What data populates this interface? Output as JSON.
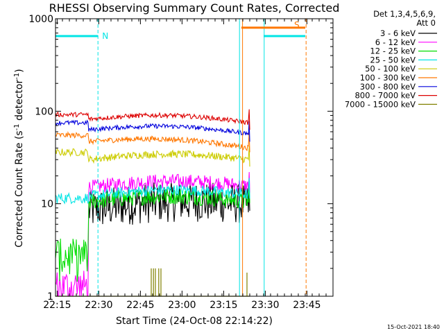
{
  "chart_data": {
    "type": "line",
    "title": "RHESSI Observing Summary Count Rates, Corrected",
    "xlabel": "Start Time (24-Oct-08 22:14:22)",
    "ylabel": "Corrected Count Rate (s",
    "ylabel_sup": "-1",
    "ylabel_tail": " detector",
    "ylabel_tail_sup": "-1",
    "ylabel_close": ")",
    "yscale": "log",
    "ylim": [
      1,
      1000
    ],
    "xlim": [
      0,
      100
    ],
    "y_ticks": [
      {
        "value": 1,
        "label": "1"
      },
      {
        "value": 10,
        "label": "10"
      },
      {
        "value": 100,
        "label": "100"
      },
      {
        "value": 1000,
        "label": "1000"
      }
    ],
    "x_ticks": [
      {
        "minutes": 0.6,
        "label": "22:15"
      },
      {
        "minutes": 15.6,
        "label": "22:30"
      },
      {
        "minutes": 30.6,
        "label": "22:45"
      },
      {
        "minutes": 45.6,
        "label": "23:00"
      },
      {
        "minutes": 60.6,
        "label": "23:15"
      },
      {
        "minutes": 75.6,
        "label": "23:30"
      },
      {
        "minutes": 90.6,
        "label": "23:45"
      }
    ],
    "legend_header": [
      "Det 1,3,4,5,6,9,",
      "Att 0"
    ],
    "series": [
      {
        "name": "3 - 6 keV",
        "color": "#000000",
        "pre": null,
        "start": 8.5,
        "end": 9.8,
        "spike": 14,
        "noise": 0.22
      },
      {
        "name": "6 - 12 keV",
        "color": "#ff00ff",
        "pre": 1.6,
        "start": 15,
        "end": 15.5,
        "spike": 22,
        "noise": 0.08
      },
      {
        "name": "12 - 25 keV",
        "color": "#00dd00",
        "pre": 3.5,
        "start": 10.5,
        "end": 10.5,
        "spike": 17,
        "noise": 0.09
      },
      {
        "name": "25 - 50 keV",
        "color": "#00e5e5",
        "pre": 11.5,
        "start": 12,
        "end": 12.5,
        "spike": 19,
        "noise": 0.06
      },
      {
        "name": "50 - 100 keV",
        "color": "#cccc00",
        "pre": 36,
        "start": 30,
        "end": 30,
        "spike": 42,
        "noise": 0.04
      },
      {
        "name": "100 - 300 keV",
        "color": "#ff7700",
        "pre": 55,
        "start": 47,
        "end": 40,
        "spike": 60,
        "noise": 0.03
      },
      {
        "name": "300 - 800 keV",
        "color": "#0000dd",
        "pre": 75,
        "start": 63,
        "end": 57,
        "spike": 78,
        "noise": 0.025
      },
      {
        "name": "800 - 7000 keV",
        "color": "#dd0000",
        "pre": 92,
        "start": 82,
        "end": 75,
        "spike": 105,
        "noise": 0.025
      },
      {
        "name": "7000 - 15000 keV",
        "color": "#808000",
        "pre": null,
        "start": 1,
        "end": 1,
        "spike": 2,
        "noise": 0
      }
    ],
    "flags": [
      {
        "label": "N",
        "color": "#00e5e5",
        "start_min": 0,
        "end_min": 15.3,
        "level": 650
      },
      {
        "label": "S",
        "color": "#ff7700",
        "start_min": 67,
        "end_min": 90,
        "level": 800
      },
      {
        "label": "",
        "color": "#00e5e5",
        "start_min": 75,
        "end_min": 90,
        "level": 650
      }
    ],
    "vertical_markers": [
      {
        "minutes": 0,
        "color": "#00e5e5",
        "style": "solid"
      },
      {
        "minutes": 15.3,
        "color": "#00e5e5",
        "style": "dashed"
      },
      {
        "minutes": 66.3,
        "color": "#00e5e5",
        "style": "solid"
      },
      {
        "minutes": 67.4,
        "color": "#ff7700",
        "style": "solid"
      },
      {
        "minutes": 75.2,
        "color": "#00e5e5",
        "style": "solid"
      },
      {
        "minutes": 90.3,
        "color": "#ff7700",
        "style": "dashed"
      }
    ]
  },
  "footer": {
    "date": "15-Oct-2021 18:40"
  }
}
